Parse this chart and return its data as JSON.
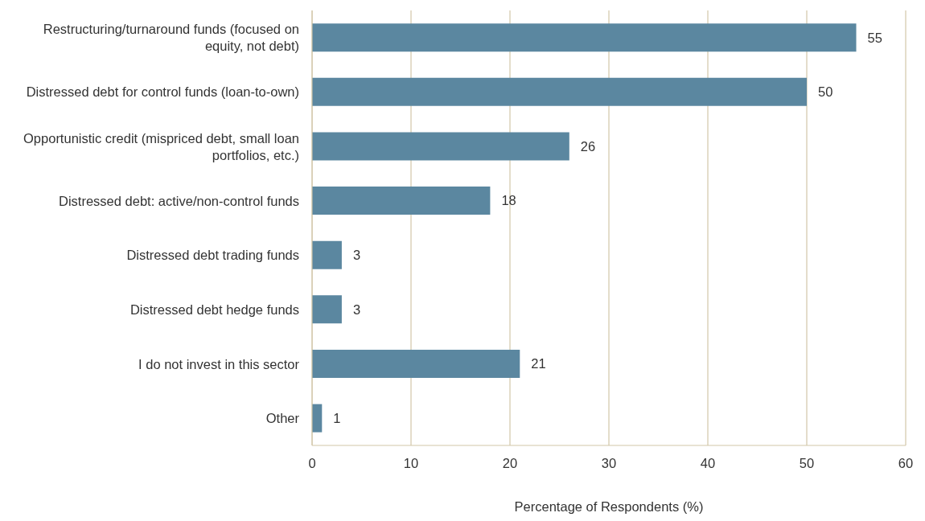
{
  "chart_data": {
    "type": "bar",
    "orientation": "horizontal",
    "categories": [
      "Restructuring/turnaround funds (focused on equity, not debt)",
      "Distressed debt for control funds (loan-to-own)",
      "Opportunistic credit (mispriced debt, small loan portfolios, etc.)",
      "Distressed debt: active/non-control funds",
      "Distressed debt trading funds",
      "Distressed debt hedge funds",
      "I do not invest in this sector",
      "Other"
    ],
    "values": [
      55,
      50,
      26,
      18,
      3,
      3,
      21,
      1
    ],
    "color": "#5b87a0",
    "xlim": [
      0,
      60
    ],
    "xticks": [
      0,
      10,
      20,
      30,
      40,
      50,
      60
    ],
    "xlabel": "Percentage of Respondents (%)",
    "grid": "x",
    "data_labels": true,
    "legend": false
  }
}
